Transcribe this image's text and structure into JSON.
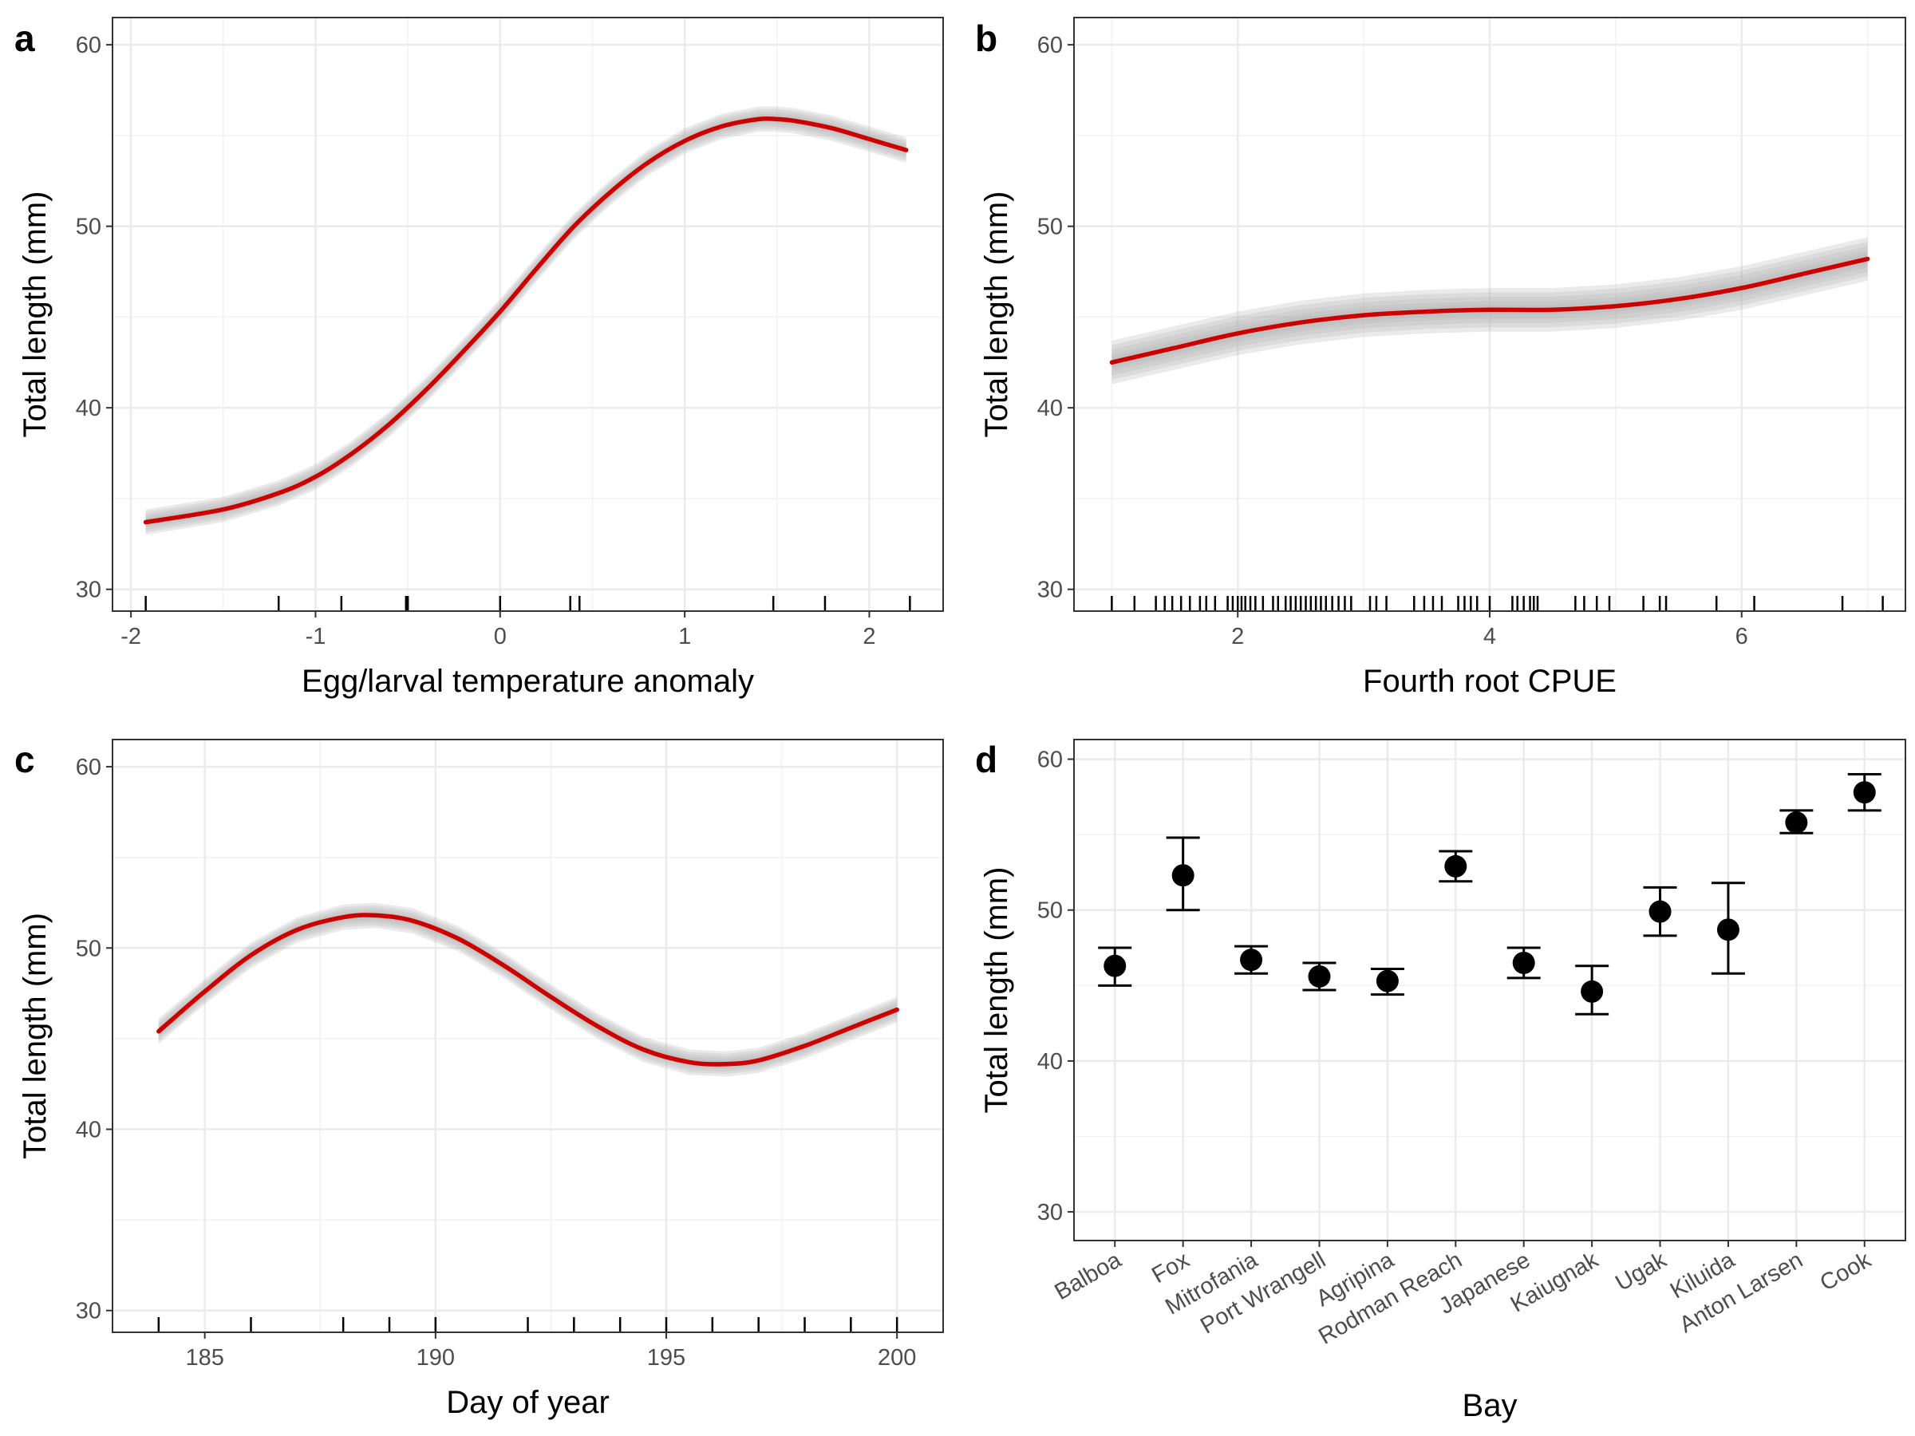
{
  "chart_data": [
    {
      "panel": "a",
      "type": "line",
      "xlabel": "Egg/larval temperature anomaly",
      "ylabel": "Total length (mm)",
      "xlim": [
        -2.1,
        2.4
      ],
      "ylim": [
        28.8,
        61.5
      ],
      "xticks": [
        -2,
        -1,
        0,
        1,
        2
      ],
      "xtick_labels": [
        "-2",
        "-1",
        "0",
        "1",
        "2"
      ],
      "yticks": [
        30,
        40,
        50,
        60
      ],
      "ytick_labels": [
        "30",
        "40",
        "50",
        "60"
      ],
      "grid": true,
      "series": [
        {
          "color": "#cc0000",
          "x": [
            -1.92,
            -1.5,
            -1.2,
            -1.0,
            -0.8,
            -0.6,
            -0.4,
            -0.2,
            0.0,
            0.2,
            0.4,
            0.6,
            0.8,
            1.0,
            1.2,
            1.4,
            1.5,
            1.6,
            1.8,
            2.0,
            2.2
          ],
          "y": [
            33.7,
            34.4,
            35.3,
            36.2,
            37.5,
            39.1,
            41.0,
            43.1,
            45.3,
            47.7,
            50.0,
            51.9,
            53.5,
            54.7,
            55.5,
            55.9,
            55.9,
            55.8,
            55.4,
            54.8,
            54.2
          ],
          "band": 0.7
        }
      ],
      "rug": [
        -1.92,
        -1.2,
        -0.86,
        -0.51,
        -0.5,
        0.0,
        0.38,
        0.43,
        1.48,
        1.76,
        2.22
      ]
    },
    {
      "panel": "b",
      "type": "line",
      "xlabel": "Fourth root CPUE",
      "ylabel": "Total length (mm)",
      "xlim": [
        0.7,
        7.3
      ],
      "ylim": [
        28.8,
        61.5
      ],
      "xticks": [
        2,
        4,
        6
      ],
      "xtick_labels": [
        "2",
        "4",
        "6"
      ],
      "yticks": [
        30,
        40,
        50,
        60
      ],
      "ytick_labels": [
        "30",
        "40",
        "50",
        "60"
      ],
      "grid": true,
      "series": [
        {
          "color": "#cc0000",
          "x": [
            1.0,
            1.5,
            2.0,
            2.5,
            3.0,
            3.5,
            4.0,
            4.5,
            5.0,
            5.5,
            6.0,
            6.5,
            7.0
          ],
          "y": [
            42.5,
            43.3,
            44.1,
            44.7,
            45.1,
            45.3,
            45.4,
            45.4,
            45.6,
            46.0,
            46.6,
            47.4,
            48.2
          ],
          "band": 1.2
        }
      ],
      "rug": [
        1.0,
        1.18,
        1.35,
        1.42,
        1.48,
        1.55,
        1.62,
        1.7,
        1.75,
        1.82,
        1.92,
        1.96,
        2.0,
        2.03,
        2.06,
        2.1,
        2.14,
        2.2,
        2.28,
        2.32,
        2.38,
        2.42,
        2.46,
        2.5,
        2.54,
        2.58,
        2.62,
        2.66,
        2.7,
        2.75,
        2.8,
        2.85,
        2.9,
        3.05,
        3.1,
        3.18,
        3.4,
        3.48,
        3.55,
        3.62,
        3.75,
        3.8,
        3.85,
        3.9,
        4.0,
        4.18,
        4.22,
        4.27,
        4.32,
        4.35,
        4.38,
        4.68,
        4.75,
        4.85,
        4.95,
        5.22,
        5.35,
        5.4,
        5.8,
        6.1,
        6.8,
        7.12
      ]
    },
    {
      "panel": "c",
      "type": "line",
      "xlabel": "Day of year",
      "ylabel": "Total length (mm)",
      "xlim": [
        183.0,
        201.0
      ],
      "ylim": [
        28.8,
        61.5
      ],
      "xticks": [
        185,
        190,
        195,
        200
      ],
      "xtick_labels": [
        "185",
        "190",
        "195",
        "200"
      ],
      "yticks": [
        30,
        40,
        50,
        60
      ],
      "ytick_labels": [
        "30",
        "40",
        "50",
        "60"
      ],
      "grid": true,
      "series": [
        {
          "color": "#cc0000",
          "x": [
            184,
            185,
            186,
            187,
            188,
            188.7,
            189.5,
            190.5,
            191.5,
            192.5,
            193.5,
            194.5,
            195.5,
            196.3,
            197,
            198,
            199,
            200
          ],
          "y": [
            45.4,
            47.6,
            49.6,
            51.0,
            51.7,
            51.8,
            51.5,
            50.5,
            49.0,
            47.3,
            45.7,
            44.4,
            43.7,
            43.6,
            43.8,
            44.6,
            45.6,
            46.6
          ],
          "band": 0.7
        }
      ],
      "rug": [
        184,
        186,
        188,
        189,
        190,
        192,
        193,
        194,
        195,
        196,
        197,
        198,
        199,
        200
      ]
    },
    {
      "panel": "d",
      "type": "scatter",
      "xlabel": "Bay",
      "ylabel": "Total length (mm)",
      "ylim": [
        28.1,
        61.3
      ],
      "yticks": [
        30,
        40,
        50,
        60
      ],
      "ytick_labels": [
        "30",
        "40",
        "50",
        "60"
      ],
      "grid": true,
      "categories": [
        "Balboa",
        "Fox",
        "Mitrofania",
        "Port Wrangell",
        "Agripina",
        "Rodman Reach",
        "Japanese",
        "Kaiugnak",
        "Ugak",
        "Kiluida",
        "Anton Larsen",
        "Cook"
      ],
      "values": [
        46.3,
        52.3,
        46.7,
        45.6,
        45.3,
        52.9,
        46.5,
        44.6,
        49.9,
        48.7,
        55.8,
        57.8
      ],
      "lower": [
        45.0,
        50.0,
        45.8,
        44.7,
        44.4,
        51.9,
        45.5,
        43.1,
        48.3,
        45.8,
        55.1,
        56.6
      ],
      "upper": [
        47.5,
        54.8,
        47.6,
        46.5,
        46.1,
        53.9,
        47.5,
        46.3,
        51.5,
        51.8,
        56.6,
        59.0
      ]
    }
  ],
  "panel_tags": [
    "a",
    "b",
    "c",
    "d"
  ]
}
